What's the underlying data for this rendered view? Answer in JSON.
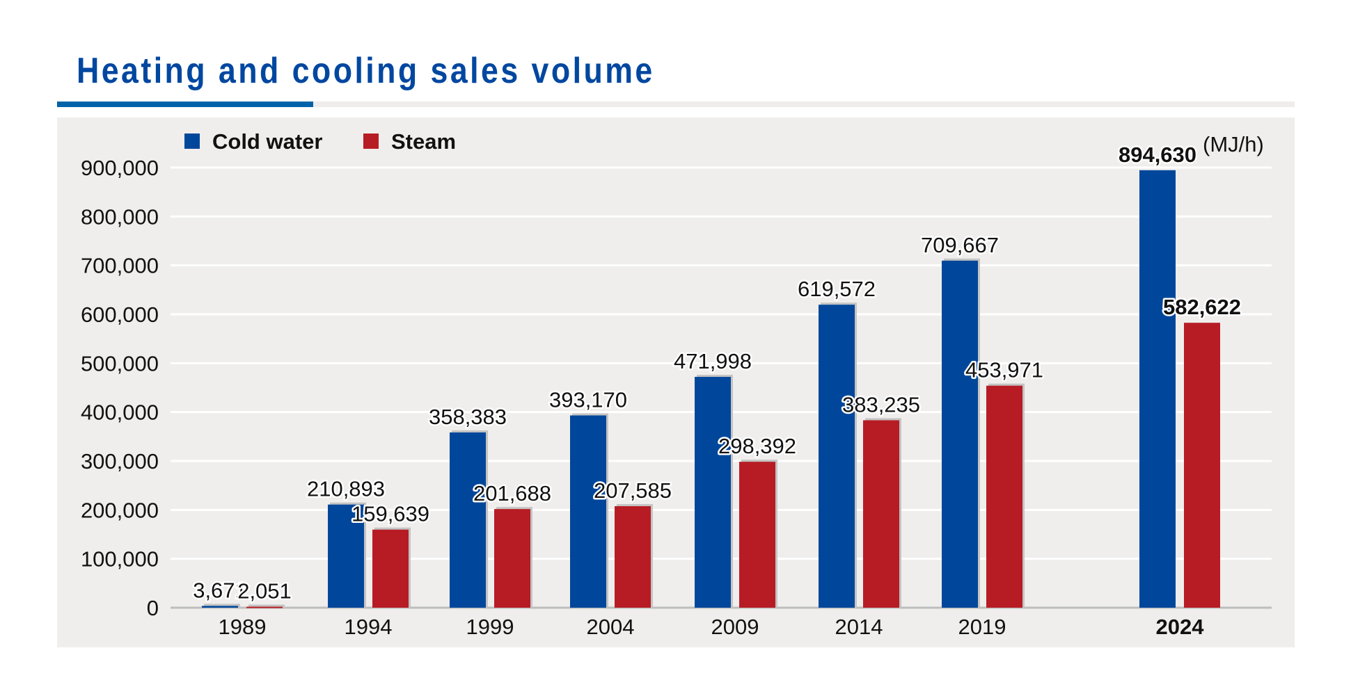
{
  "chart_data": {
    "type": "bar",
    "title": "Heating and cooling sales volume",
    "unit": "(MJ/h)",
    "categories": [
      "1989",
      "1994",
      "1999",
      "2004",
      "2009",
      "2014",
      "2019",
      "2024"
    ],
    "series": [
      {
        "name": "Cold water",
        "color": "#00479b",
        "values": [
          3671,
          210893,
          358383,
          393170,
          471998,
          619572,
          709667,
          894630
        ],
        "labels": [
          "3,671",
          "210,893",
          "358,383",
          "393,170",
          "471,998",
          "619,572",
          "709,667",
          "894,630"
        ]
      },
      {
        "name": "Steam",
        "color": "#b71c24",
        "values": [
          2051,
          159639,
          201688,
          207585,
          298392,
          383235,
          453971,
          582622
        ],
        "labels": [
          "2,051",
          "159,639",
          "201,688",
          "207,585",
          "298,392",
          "383,235",
          "453,971",
          "582,622"
        ]
      }
    ],
    "ylim": [
      0,
      900000
    ],
    "yticks": [
      0,
      100000,
      200000,
      300000,
      400000,
      500000,
      600000,
      700000,
      800000,
      900000
    ],
    "ytick_labels": [
      "0",
      "100,000",
      "200,000",
      "300,000",
      "400,000",
      "500,000",
      "600,000",
      "700,000",
      "800,000",
      "900,000"
    ],
    "highlight_category": "2024",
    "legend_position": "top-left",
    "grid": true,
    "xlabel": "",
    "ylabel": ""
  }
}
